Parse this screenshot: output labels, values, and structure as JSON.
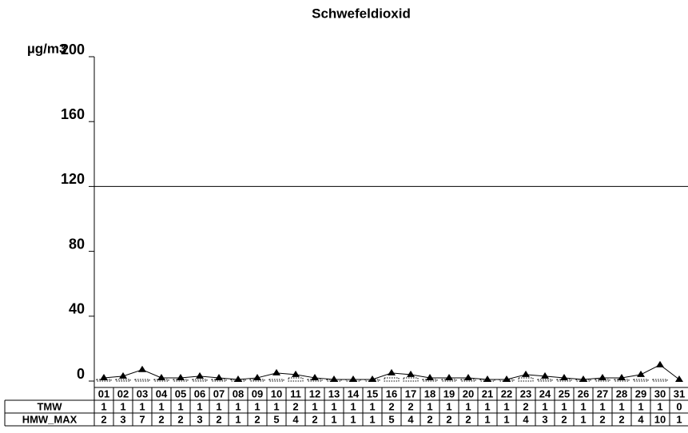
{
  "chart_data": {
    "type": "line",
    "title": "Schwefeldioxid",
    "y_label": "µg/m3",
    "categories": [
      "01",
      "02",
      "03",
      "04",
      "05",
      "06",
      "07",
      "08",
      "09",
      "10",
      "11",
      "12",
      "13",
      "14",
      "15",
      "16",
      "17",
      "18",
      "19",
      "20",
      "21",
      "22",
      "23",
      "24",
      "25",
      "26",
      "27",
      "28",
      "29",
      "30",
      "31"
    ],
    "series": [
      {
        "name": "TMW",
        "color": "#000000",
        "values": [
          1,
          1,
          1,
          1,
          1,
          1,
          1,
          1,
          1,
          1,
          2,
          1,
          1,
          1,
          1,
          2,
          2,
          1,
          1,
          1,
          1,
          1,
          2,
          1,
          1,
          1,
          1,
          1,
          1,
          1,
          0
        ]
      },
      {
        "name": "HMW_MAX",
        "color": "#000000",
        "values": [
          2,
          3,
          7,
          2,
          2,
          3,
          2,
          1,
          2,
          5,
          4,
          2,
          1,
          1,
          1,
          5,
          4,
          2,
          2,
          2,
          1,
          1,
          4,
          3,
          2,
          1,
          2,
          2,
          4,
          10,
          1
        ]
      }
    ],
    "ylim": [
      0,
      200
    ],
    "yticks": [
      0,
      40,
      80,
      120,
      160,
      200
    ],
    "limit_line": 120
  }
}
